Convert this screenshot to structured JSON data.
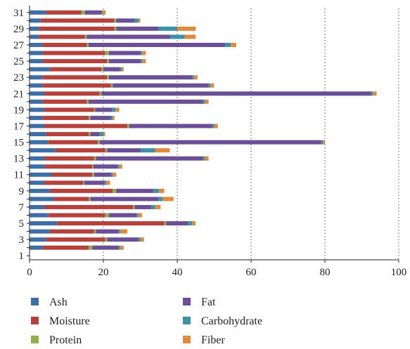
{
  "chart_data": {
    "type": "bar",
    "orientation": "horizontal",
    "stacked": true,
    "title": "",
    "xlabel": "",
    "ylabel": "",
    "xlim": [
      0,
      100
    ],
    "xticks": [
      0,
      20,
      40,
      60,
      80,
      100
    ],
    "grid": "vertical dotted",
    "legend_position": "bottom",
    "categories": [
      "1",
      "2",
      "3",
      "4",
      "5",
      "6",
      "7",
      "8",
      "9",
      "10",
      "11",
      "12",
      "13",
      "14",
      "15",
      "16",
      "17",
      "18",
      "19",
      "20",
      "21",
      "22",
      "23",
      "24",
      "25",
      "26",
      "27",
      "28",
      "29",
      "30",
      "31"
    ],
    "yticks_shown": [
      "1",
      "3",
      "5",
      "7",
      "9",
      "11",
      "13",
      "15",
      "17",
      "19",
      "21",
      "23",
      "25",
      "27",
      "29",
      "31"
    ],
    "series": [
      {
        "name": "Ash",
        "color": "#3d6fa6",
        "values": [
          0,
          3.5,
          4.5,
          5.5,
          7.5,
          5,
          4,
          6.5,
          5.5,
          4,
          6,
          4,
          4,
          7,
          5,
          4.5,
          4,
          3.5,
          4,
          3.5,
          4,
          3.5,
          3.5,
          5.5,
          3.5,
          3.5,
          3.5,
          2.5,
          2.5,
          3,
          4.5
        ]
      },
      {
        "name": "Moisture",
        "color": "#b5413d",
        "values": [
          0,
          12.5,
          16,
          12,
          29,
          15.5,
          24,
          9.5,
          17,
          10.5,
          11,
          13,
          13.5,
          13.5,
          13.5,
          11.5,
          22.5,
          12.5,
          13.5,
          12,
          15,
          18.5,
          17.5,
          14,
          17.5,
          17,
          12,
          12.5,
          20.5,
          20,
          9.5
        ]
      },
      {
        "name": "Protein",
        "color": "#8db04a",
        "values": [
          0,
          1,
          0.5,
          0.5,
          0.5,
          1,
          0.5,
          0.5,
          1,
          0.3,
          0.5,
          0.3,
          0.5,
          0.5,
          0.5,
          0.5,
          0.5,
          0.5,
          0.3,
          0.5,
          0.5,
          0.5,
          0.5,
          0.5,
          0.5,
          1,
          0.5,
          0.5,
          0.5,
          0.5,
          1
        ]
      },
      {
        "name": "Fat",
        "color": "#6a4f96",
        "values": [
          0,
          7,
          8.5,
          6,
          6,
          7.5,
          4.5,
          18.5,
          10,
          5.5,
          4.5,
          6.5,
          29,
          9,
          60,
          2.5,
          22.5,
          5.5,
          4.5,
          31,
          73,
          26,
          22.5,
          4.5,
          8.5,
          8.5,
          37,
          22.5,
          11.5,
          5,
          4.5
        ]
      },
      {
        "name": "Carbohydrate",
        "color": "#3b92a8",
        "values": [
          0,
          0.5,
          0.5,
          0.5,
          1,
          0.5,
          1,
          1,
          1.5,
          0.5,
          0.5,
          0.5,
          0.5,
          4,
          0.5,
          1,
          0.5,
          0.5,
          1,
          0.5,
          0.5,
          0.5,
          0.5,
          0.5,
          0.5,
          0.5,
          1.5,
          4,
          5,
          1,
          0.3
        ]
      },
      {
        "name": "Fiber",
        "color": "#df8a3c",
        "values": [
          0,
          1,
          1,
          2,
          1,
          1,
          1.5,
          3,
          1.5,
          1,
          1,
          0.8,
          1,
          4,
          0.5,
          0.5,
          1,
          0.5,
          1,
          1,
          1,
          1,
          1,
          0.5,
          1,
          1,
          1.5,
          3,
          5,
          0.5,
          0.8
        ]
      }
    ]
  }
}
